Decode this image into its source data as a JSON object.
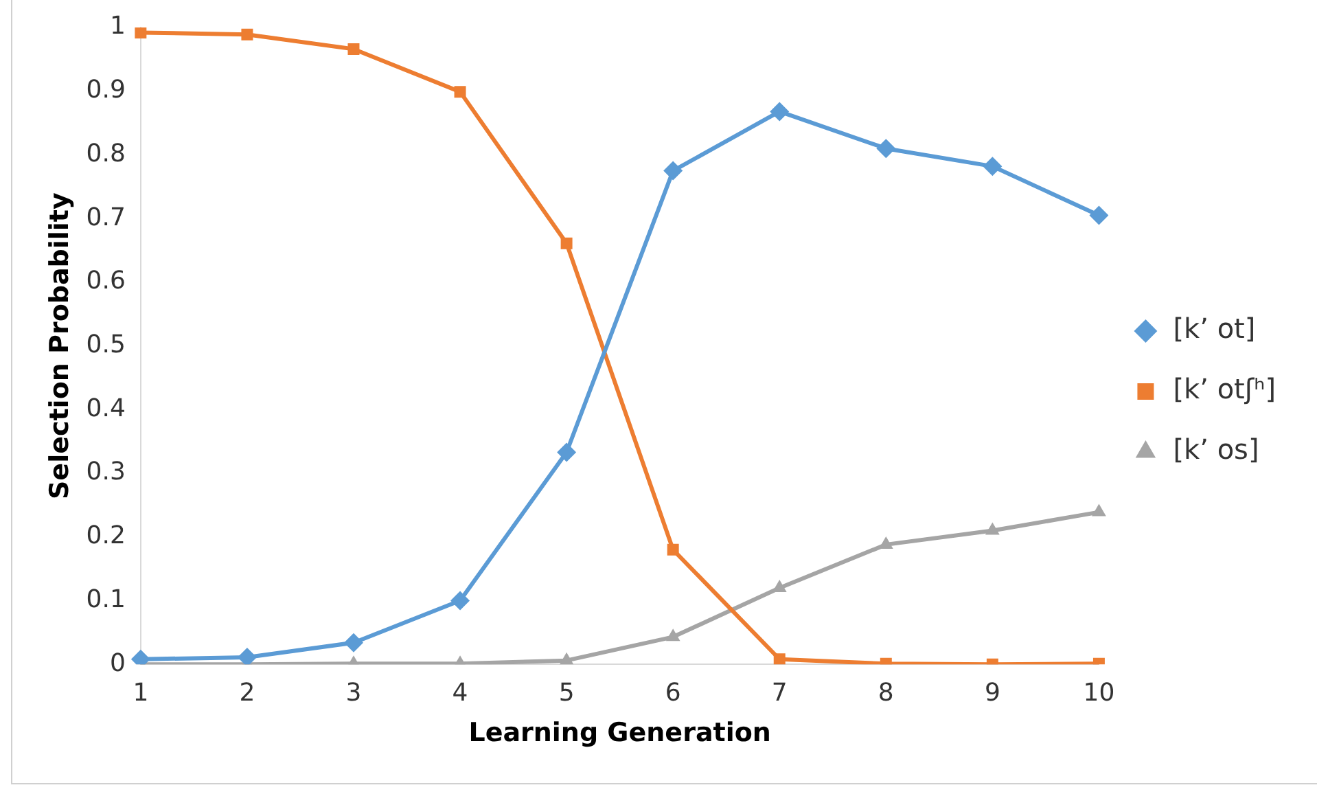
{
  "chart_data": {
    "type": "line",
    "xlabel": "Learning Generation",
    "ylabel": "Selection Probability",
    "categories": [
      "1",
      "2",
      "3",
      "4",
      "5",
      "6",
      "7",
      "8",
      "9",
      "10"
    ],
    "series": [
      {
        "name": "[k’ ot]",
        "color": "#5b9bd5",
        "marker": "diamond",
        "values": [
          0.008,
          0.011,
          0.034,
          0.1,
          0.333,
          0.775,
          0.868,
          0.81,
          0.782,
          0.705
        ]
      },
      {
        "name": "[k’ otʃʰ]",
        "color": "#ed7d31",
        "marker": "square",
        "values": [
          0.992,
          0.989,
          0.966,
          0.899,
          0.661,
          0.18,
          0.008,
          0.001,
          0,
          0.001
        ]
      },
      {
        "name": "[k’ os]",
        "color": "#a5a5a5",
        "marker": "triangle",
        "values": [
          0,
          0,
          0.001,
          0.001,
          0.006,
          0.043,
          0.12,
          0.188,
          0.21,
          0.239
        ]
      }
    ],
    "ylim": [
      0,
      1
    ],
    "yticks": [
      0,
      0.1,
      0.2,
      0.3,
      0.4,
      0.5,
      0.6,
      0.7,
      0.8,
      0.9,
      1
    ],
    "grid": false,
    "legend": "right",
    "line_style": "solid"
  }
}
